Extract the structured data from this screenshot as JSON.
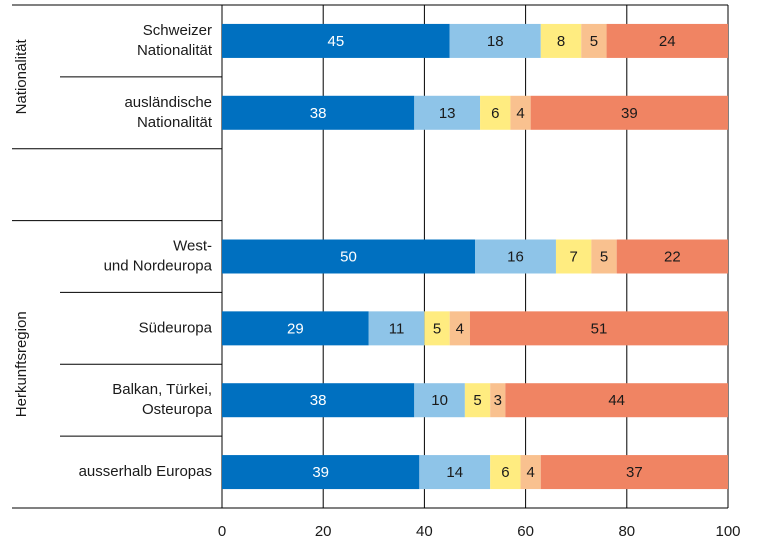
{
  "chart_data": {
    "type": "bar",
    "orientation": "horizontal",
    "stacked": true,
    "groups": [
      "Nationalität",
      "Herkunftsregion"
    ],
    "categories": [
      [
        "Schweizer",
        "Nationalität"
      ],
      [
        "ausländische",
        "Nationalität"
      ],
      null,
      [
        "West-",
        "und Nordeuropa"
      ],
      [
        "Südeuropa"
      ],
      [
        "Balkan, Türkei,",
        "Osteuropa"
      ],
      [
        "ausserhalb Europas"
      ]
    ],
    "series": [
      {
        "color": "#0070c0",
        "values": [
          45,
          38,
          null,
          50,
          29,
          38,
          39
        ]
      },
      {
        "color": "#8ec4e8",
        "values": [
          18,
          13,
          null,
          16,
          11,
          10,
          14
        ]
      },
      {
        "color": "#ffec80",
        "values": [
          8,
          6,
          null,
          7,
          5,
          5,
          6
        ]
      },
      {
        "color": "#f9c18f",
        "values": [
          5,
          4,
          null,
          5,
          4,
          3,
          4
        ]
      },
      {
        "color": "#f08463",
        "values": [
          24,
          39,
          null,
          22,
          51,
          44,
          37
        ]
      }
    ],
    "xlim": [
      0,
      100
    ],
    "xticks": [
      0,
      20,
      40,
      60,
      80,
      100
    ],
    "grid": true
  }
}
